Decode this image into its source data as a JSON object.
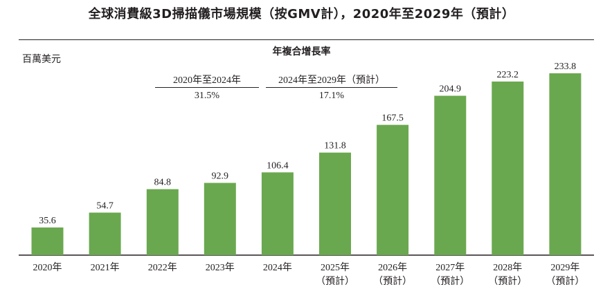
{
  "chart_data": {
    "type": "bar",
    "title": "全球消費級3D掃描儀市場規模（按GMV計），2020年至2029年（預計）",
    "unit": "百萬美元",
    "categories": [
      "2020年",
      "2021年",
      "2022年",
      "2023年",
      "2024年",
      "2025年",
      "2026年",
      "2027年",
      "2028年",
      "2029年"
    ],
    "forecast_note": "（預計）",
    "forecast_from_index": 5,
    "values": [
      35.6,
      54.7,
      84.8,
      92.9,
      106.4,
      131.8,
      167.5,
      204.9,
      223.2,
      233.8
    ],
    "value_labels": [
      "35.6",
      "54.7",
      "84.8",
      "92.9",
      "106.4",
      "131.8",
      "167.5",
      "204.9",
      "223.2",
      "233.8"
    ],
    "bar_color": "#6aa84f",
    "ylim": [
      0,
      233.8
    ],
    "grid": false,
    "cagr": {
      "heading": "年複合增長率",
      "periods": [
        {
          "label": "2020年至2024年",
          "value": "31.5%"
        },
        {
          "label": "2024年至2029年（預計）",
          "value": "17.1%"
        }
      ]
    }
  }
}
